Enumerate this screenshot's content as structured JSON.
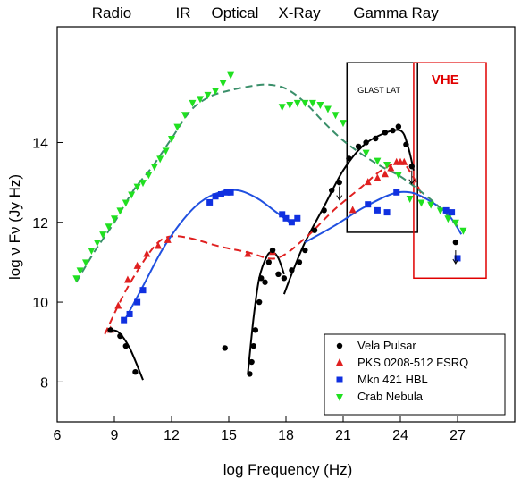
{
  "chart_data": {
    "type": "scatter",
    "band_labels": [
      "Radio",
      "IR",
      "Optical",
      "X-Ray",
      "Gamma Ray"
    ],
    "xlabel": "log Frequency (Hz)",
    "ylabel": "log ν Fν   (Jy Hz)",
    "xlim": [
      6,
      30
    ],
    "ylim": [
      7,
      16.9
    ],
    "xticks": [
      6,
      9,
      12,
      15,
      18,
      21,
      24,
      27
    ],
    "yticks": [
      8,
      10,
      12,
      14
    ],
    "grid": false,
    "legend_position": "bottom-right",
    "annotations": [
      {
        "text": "GLAST LAT",
        "x_range": [
          21.2,
          24.9
        ],
        "y_range": [
          11.75,
          16.0
        ],
        "color": "#000000"
      },
      {
        "text": "VHE",
        "x_range": [
          24.7,
          28.5
        ],
        "y_range": [
          10.6,
          16.0
        ],
        "color": "#e00000"
      }
    ],
    "series": [
      {
        "name": "Vela Pulsar",
        "color": "#000000",
        "marker": "circle",
        "line_style": "solid",
        "points": [
          [
            8.8,
            9.3
          ],
          [
            9.3,
            9.15
          ],
          [
            9.6,
            8.9
          ],
          [
            10.1,
            8.25
          ],
          [
            14.8,
            8.85
          ],
          [
            16.1,
            8.2
          ],
          [
            16.2,
            8.5
          ],
          [
            16.3,
            8.9
          ],
          [
            16.4,
            9.3
          ],
          [
            16.6,
            10.0
          ],
          [
            16.7,
            10.6
          ],
          [
            16.9,
            10.5
          ],
          [
            17.1,
            11.0
          ],
          [
            17.3,
            11.3
          ],
          [
            17.6,
            10.7
          ],
          [
            17.9,
            10.6
          ],
          [
            18.3,
            10.8
          ],
          [
            18.7,
            11.0
          ],
          [
            19.0,
            11.3
          ],
          [
            19.5,
            11.8
          ],
          [
            20.0,
            12.3
          ],
          [
            20.4,
            12.8
          ],
          [
            20.8,
            13.0
          ],
          [
            21.3,
            13.6
          ],
          [
            21.8,
            13.9
          ],
          [
            22.2,
            14.0
          ],
          [
            22.7,
            14.1
          ],
          [
            23.2,
            14.25
          ],
          [
            23.6,
            14.3
          ],
          [
            23.9,
            14.4
          ],
          [
            24.3,
            13.95
          ],
          [
            24.6,
            13.4
          ],
          [
            26.9,
            11.5
          ]
        ],
        "upper_limits": [
          [
            20.8,
            12.9
          ],
          [
            24.6,
            13.3
          ],
          [
            26.9,
            11.3
          ]
        ],
        "curves": [
          [
            [
              8.6,
              9.3
            ],
            [
              9.2,
              9.25
            ],
            [
              9.8,
              8.85
            ],
            [
              10.5,
              8.05
            ]
          ],
          [
            [
              16.0,
              8.2
            ],
            [
              16.3,
              9.6
            ],
            [
              16.6,
              10.6
            ],
            [
              17.0,
              11.15
            ],
            [
              17.3,
              11.25
            ],
            [
              17.6,
              11.1
            ],
            [
              17.9,
              10.7
            ]
          ],
          [
            [
              17.9,
              10.2
            ],
            [
              18.3,
              10.7
            ],
            [
              19.0,
              11.5
            ],
            [
              20.0,
              12.4
            ],
            [
              21.0,
              13.3
            ],
            [
              22.0,
              13.9
            ],
            [
              23.0,
              14.2
            ],
            [
              24.0,
              14.3
            ],
            [
              24.4,
              13.9
            ],
            [
              24.7,
              13.3
            ]
          ]
        ]
      },
      {
        "name": "PKS 0208-512 FSRQ",
        "color": "#e02020",
        "marker": "triangle",
        "line_style": "dashed",
        "points": [
          [
            8.8,
            9.3
          ],
          [
            9.2,
            9.9
          ],
          [
            9.7,
            10.55
          ],
          [
            10.2,
            10.9
          ],
          [
            10.7,
            11.2
          ],
          [
            11.3,
            11.4
          ],
          [
            11.8,
            11.55
          ],
          [
            16.0,
            11.2
          ],
          [
            17.3,
            11.25
          ],
          [
            21.5,
            12.3
          ],
          [
            22.3,
            13.0
          ],
          [
            22.8,
            13.1
          ],
          [
            23.2,
            13.2
          ],
          [
            23.5,
            13.35
          ],
          [
            23.8,
            13.5
          ],
          [
            24.0,
            13.5
          ],
          [
            24.2,
            13.5
          ]
        ],
        "curves": [
          [
            [
              8.5,
              9.2
            ],
            [
              9.5,
              10.2
            ],
            [
              10.5,
              11.0
            ],
            [
              11.3,
              11.5
            ],
            [
              12.0,
              11.65
            ],
            [
              13.0,
              11.6
            ],
            [
              14.5,
              11.4
            ],
            [
              16.0,
              11.25
            ],
            [
              17.5,
              11.1
            ],
            [
              19.0,
              11.6
            ],
            [
              20.5,
              12.3
            ],
            [
              22.0,
              12.9
            ],
            [
              23.0,
              13.3
            ],
            [
              24.0,
              13.5
            ],
            [
              24.6,
              13.2
            ],
            [
              25.2,
              12.6
            ]
          ]
        ]
      },
      {
        "name": "Mkn 421 HBL",
        "color": "#1030e0",
        "marker": "square",
        "line_style": "solid",
        "points": [
          [
            9.5,
            9.55
          ],
          [
            9.8,
            9.7
          ],
          [
            10.2,
            10.0
          ],
          [
            10.5,
            10.3
          ],
          [
            14.0,
            12.5
          ],
          [
            14.3,
            12.65
          ],
          [
            14.6,
            12.7
          ],
          [
            14.9,
            12.75
          ],
          [
            15.1,
            12.75
          ],
          [
            17.8,
            12.2
          ],
          [
            18.0,
            12.1
          ],
          [
            18.3,
            12.0
          ],
          [
            18.6,
            12.1
          ],
          [
            22.3,
            12.45
          ],
          [
            22.8,
            12.3
          ],
          [
            23.3,
            12.25
          ],
          [
            23.8,
            12.75
          ],
          [
            26.4,
            12.3
          ],
          [
            26.7,
            12.25
          ],
          [
            27.0,
            11.1
          ]
        ],
        "curves": [
          [
            [
              9.6,
              9.6
            ],
            [
              10.5,
              10.4
            ],
            [
              11.5,
              11.3
            ],
            [
              12.5,
              12.0
            ],
            [
              13.5,
              12.5
            ],
            [
              14.5,
              12.75
            ],
            [
              15.5,
              12.8
            ],
            [
              16.5,
              12.6
            ],
            [
              17.5,
              12.25
            ],
            [
              18.2,
              12.0
            ]
          ],
          [
            [
              19.0,
              11.5
            ],
            [
              20.5,
              11.9
            ],
            [
              22.0,
              12.35
            ],
            [
              23.5,
              12.7
            ],
            [
              24.5,
              12.75
            ],
            [
              25.5,
              12.55
            ],
            [
              26.5,
              12.2
            ],
            [
              27.2,
              11.7
            ]
          ]
        ]
      },
      {
        "name": "Crab Nebula",
        "color": "#20e020",
        "marker": "triangle-down",
        "line_style": "dashed",
        "points": [
          [
            7.0,
            10.6
          ],
          [
            7.2,
            10.8
          ],
          [
            7.5,
            11.0
          ],
          [
            7.8,
            11.3
          ],
          [
            8.1,
            11.5
          ],
          [
            8.4,
            11.7
          ],
          [
            8.7,
            11.9
          ],
          [
            9.0,
            12.1
          ],
          [
            9.3,
            12.3
          ],
          [
            9.6,
            12.5
          ],
          [
            9.9,
            12.7
          ],
          [
            10.2,
            12.9
          ],
          [
            10.5,
            13.0
          ],
          [
            10.8,
            13.2
          ],
          [
            11.1,
            13.4
          ],
          [
            11.4,
            13.6
          ],
          [
            11.7,
            13.8
          ],
          [
            12.0,
            14.1
          ],
          [
            12.3,
            14.4
          ],
          [
            12.7,
            14.7
          ],
          [
            13.1,
            15.0
          ],
          [
            13.5,
            15.1
          ],
          [
            13.9,
            15.2
          ],
          [
            14.3,
            15.3
          ],
          [
            14.7,
            15.5
          ],
          [
            15.1,
            15.7
          ],
          [
            17.8,
            14.9
          ],
          [
            18.2,
            14.95
          ],
          [
            18.6,
            15.0
          ],
          [
            19.0,
            15.0
          ],
          [
            19.4,
            15.0
          ],
          [
            19.8,
            14.95
          ],
          [
            20.2,
            14.85
          ],
          [
            20.6,
            14.7
          ],
          [
            21.0,
            14.5
          ],
          [
            22.2,
            13.75
          ],
          [
            22.8,
            13.55
          ],
          [
            23.3,
            13.45
          ],
          [
            23.9,
            13.2
          ],
          [
            24.5,
            12.6
          ],
          [
            25.1,
            12.5
          ],
          [
            25.6,
            12.45
          ],
          [
            26.1,
            12.3
          ],
          [
            26.5,
            12.1
          ],
          [
            26.9,
            12.0
          ],
          [
            27.3,
            11.8
          ]
        ],
        "curves": [
          [
            [
              7.0,
              10.5
            ],
            [
              8.0,
              11.3
            ],
            [
              9.0,
              12.0
            ],
            [
              10.0,
              12.8
            ],
            [
              11.0,
              13.4
            ],
            [
              12.0,
              14.1
            ],
            [
              13.0,
              14.8
            ],
            [
              14.0,
              15.15
            ],
            [
              15.0,
              15.3
            ],
            [
              16.0,
              15.4
            ],
            [
              17.0,
              15.45
            ],
            [
              18.0,
              15.35
            ],
            [
              19.0,
              15.0
            ],
            [
              20.0,
              14.5
            ],
            [
              21.0,
              14.05
            ],
            [
              22.0,
              13.7
            ],
            [
              23.0,
              13.4
            ],
            [
              24.0,
              13.15
            ],
            [
              25.0,
              12.8
            ],
            [
              26.0,
              12.4
            ],
            [
              27.0,
              11.9
            ]
          ]
        ]
      }
    ]
  }
}
